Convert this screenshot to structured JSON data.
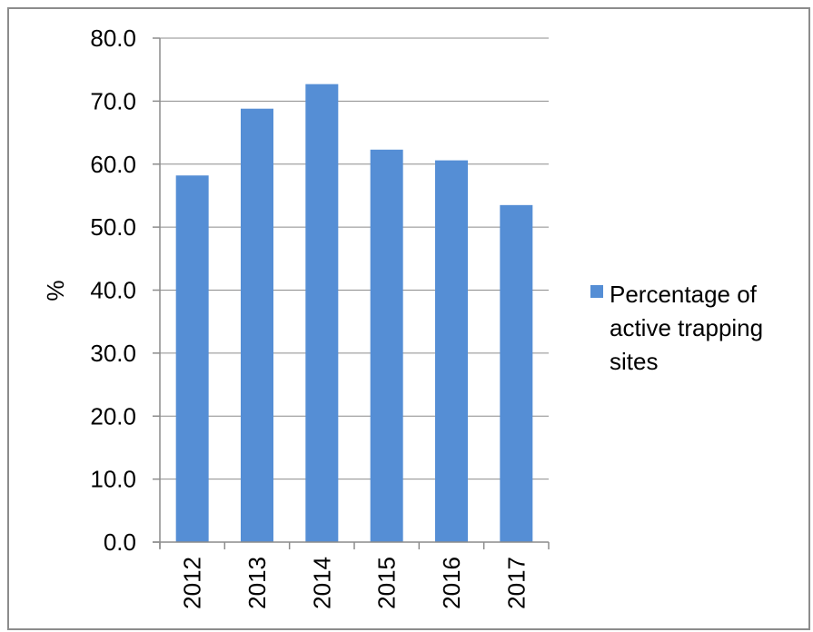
{
  "chart_data": {
    "type": "bar",
    "categories": [
      "2012",
      "2013",
      "2014",
      "2015",
      "2016",
      "2017"
    ],
    "series": [
      {
        "name": "Percentage of active trapping sites",
        "values": [
          58.2,
          68.8,
          72.7,
          62.3,
          60.6,
          53.5
        ],
        "color": "#558ed5"
      }
    ],
    "title": "",
    "xlabel": "",
    "ylabel": "%",
    "ylim": [
      0,
      80
    ],
    "yticks": [
      "0.0",
      "10.0",
      "20.0",
      "30.0",
      "40.0",
      "50.0",
      "60.0",
      "70.0",
      "80.0"
    ],
    "grid": true,
    "legend": {
      "position": "right",
      "lines": [
        "Percentage of",
        "active trapping",
        "sites"
      ]
    }
  }
}
